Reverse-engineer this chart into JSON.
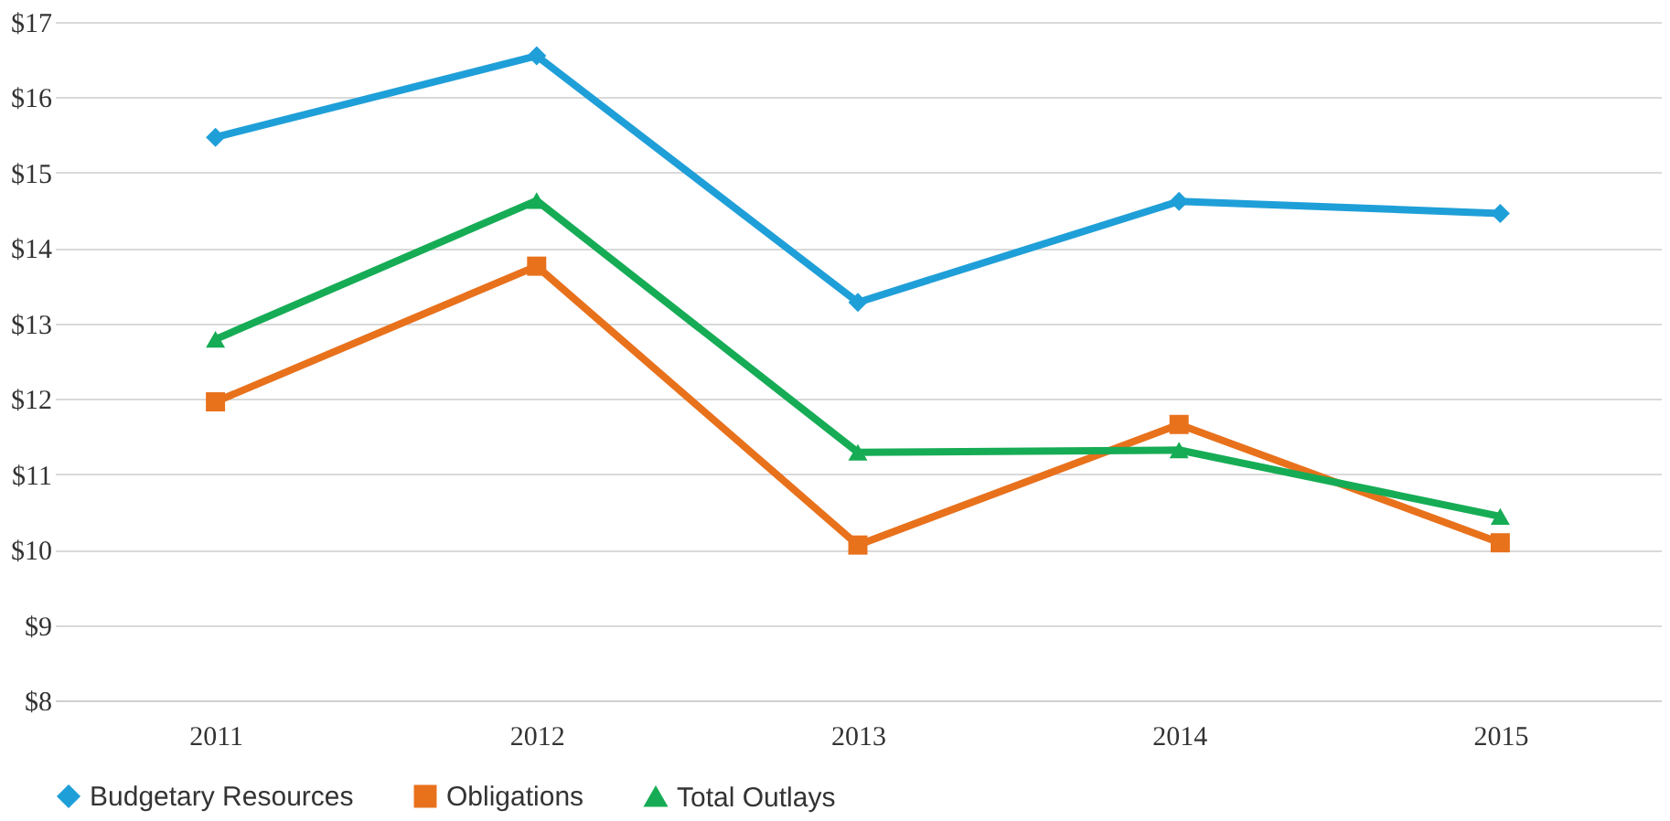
{
  "chart_data": {
    "type": "line",
    "categories": [
      "2011",
      "2012",
      "2013",
      "2014",
      "2015"
    ],
    "series": [
      {
        "name": "Budgetary Resources",
        "color": "#1f9fd8",
        "marker": "diamond",
        "values": [
          15.47,
          16.55,
          13.28,
          14.62,
          14.46
        ]
      },
      {
        "name": "Obligations",
        "color": "#e8711c",
        "marker": "square",
        "values": [
          11.96,
          13.76,
          10.06,
          11.66,
          10.09
        ]
      },
      {
        "name": "Total Outlays",
        "color": "#16ac55",
        "marker": "triangle",
        "values": [
          12.79,
          14.63,
          11.29,
          11.32,
          10.44
        ]
      }
    ],
    "ylim": [
      8,
      17
    ],
    "yticks": [
      {
        "value": 8,
        "label": "$8"
      },
      {
        "value": 9,
        "label": "$9"
      },
      {
        "value": 10,
        "label": "$10"
      },
      {
        "value": 11,
        "label": "$11"
      },
      {
        "value": 12,
        "label": "$12"
      },
      {
        "value": 13,
        "label": "$13"
      },
      {
        "value": 14,
        "label": "$14"
      },
      {
        "value": 15,
        "label": "$15"
      },
      {
        "value": 16,
        "label": "$16"
      },
      {
        "value": 17,
        "label": "$17"
      }
    ],
    "grid": "y",
    "legend": "bottom",
    "line_style": "solid"
  }
}
